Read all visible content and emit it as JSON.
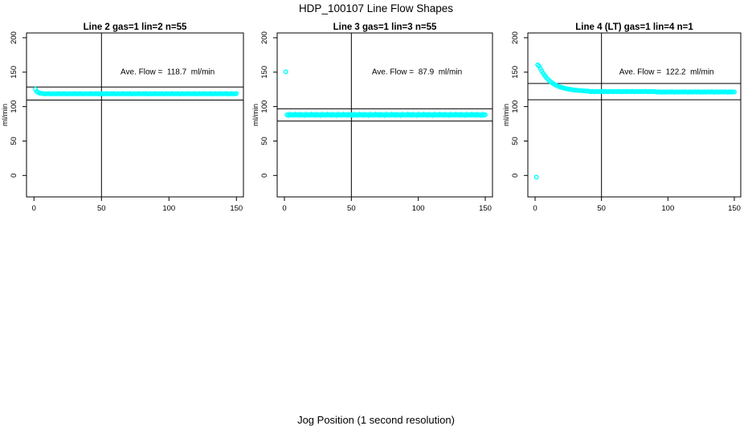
{
  "figure": {
    "main_title": "HDP_100107  Line Flow Shapes",
    "outer_xlabel": "Jog Position (1 second resolution)",
    "colors": {
      "marker": "#00FFFF",
      "axis": "#000000",
      "background": "#FFFFFF"
    }
  },
  "chart_data": [
    {
      "type": "scatter",
      "title": "Line 2 gas=1 lin=2 n=55",
      "ylabel": "ml/min",
      "annotation": "Ave. Flow =  118.7  ml/min",
      "ave_flow": 118.7,
      "xticks": [
        0,
        50,
        100,
        150
      ],
      "yticks": [
        0,
        50,
        100,
        150,
        200
      ],
      "xlim": [
        -5.4,
        155.4
      ],
      "ylim": [
        -31,
        207
      ],
      "grid": false,
      "vline_x": 50,
      "ref_lines": [
        128.5,
        109.5
      ],
      "x_rule": {
        "start": 1,
        "step": 1
      },
      "y": [
        125.2,
        121.9,
        120.6,
        119.8,
        119.4,
        119.1,
        118.7,
        118.5,
        118.8,
        118.6,
        118.9,
        118.4,
        118.6,
        118.8,
        118.5,
        118.7,
        118.6,
        118.9,
        118.7,
        118.5,
        118.8,
        118.6,
        118.9,
        118.4,
        118.6,
        118.8,
        118.5,
        118.7,
        118.6,
        118.9,
        118.7,
        118.5,
        118.8,
        118.6,
        118.9,
        118.4,
        118.6,
        118.8,
        118.5,
        118.7,
        118.6,
        118.9,
        118.7,
        118.5,
        118.8,
        118.6,
        118.9,
        118.4,
        118.6,
        118.8,
        118.5,
        118.7,
        118.6,
        118.9,
        118.7,
        118.5,
        118.8,
        118.6,
        118.9,
        118.4,
        118.6,
        118.8,
        118.5,
        118.7,
        118.6,
        118.9,
        118.7,
        118.5,
        118.8,
        118.6,
        118.9,
        118.4,
        118.6,
        118.8,
        118.5,
        118.7,
        118.6,
        118.9,
        118.7,
        118.5,
        118.8,
        118.6,
        118.9,
        118.4,
        118.6,
        118.8,
        118.5,
        118.7,
        118.6,
        118.9,
        118.7,
        118.5,
        118.8,
        118.6,
        118.9,
        118.4,
        118.6,
        118.8,
        118.5,
        118.7,
        118.6,
        118.9,
        118.7,
        118.5,
        118.8,
        118.6,
        118.9,
        118.4,
        118.6,
        118.8,
        118.5,
        118.7,
        118.6,
        118.9,
        118.7,
        118.5,
        118.8,
        118.6,
        118.9,
        118.4,
        118.6,
        118.8,
        118.5,
        118.7,
        118.6,
        118.9,
        118.7,
        118.5,
        118.8,
        118.6,
        118.9,
        118.4,
        118.6,
        118.8,
        118.5,
        118.7,
        118.6,
        118.9,
        118.7,
        118.5,
        118.8,
        118.6,
        118.9,
        118.4,
        118.6,
        118.8,
        118.5,
        118.7,
        118.6,
        118.9
      ]
    },
    {
      "type": "scatter",
      "title": "Line 3 gas=1 lin=3 n=55",
      "ylabel": "ml/min",
      "annotation": "Ave. Flow =  87.9  ml/min",
      "ave_flow": 87.9,
      "xticks": [
        0,
        50,
        100,
        150
      ],
      "yticks": [
        0,
        50,
        100,
        150,
        200
      ],
      "xlim": [
        -5.4,
        155.4
      ],
      "ylim": [
        -31,
        207
      ],
      "grid": false,
      "vline_x": 50,
      "ref_lines": [
        96.8,
        79.0
      ],
      "x_rule": {
        "start": 1,
        "step": 1
      },
      "y": [
        150.5,
        88.3,
        87.2,
        88.9,
        87.6,
        88.1,
        87.4,
        89.0,
        87.8,
        88.5,
        87.3,
        88.7,
        87.7,
        88.3,
        87.2,
        88.9,
        87.6,
        88.1,
        87.4,
        89.0,
        87.8,
        88.5,
        87.3,
        88.7,
        87.7,
        88.3,
        87.2,
        88.9,
        87.6,
        88.1,
        87.4,
        89.0,
        87.8,
        88.5,
        87.3,
        88.7,
        87.7,
        88.3,
        87.2,
        88.9,
        87.6,
        88.1,
        87.4,
        89.0,
        87.8,
        88.5,
        87.3,
        88.7,
        87.7,
        88.3,
        87.2,
        88.9,
        87.6,
        88.1,
        87.4,
        89.0,
        87.8,
        88.5,
        87.3,
        88.7,
        87.7,
        88.3,
        87.2,
        88.9,
        87.6,
        88.1,
        87.4,
        89.0,
        87.8,
        88.5,
        87.3,
        88.7,
        87.7,
        88.3,
        87.2,
        88.9,
        87.6,
        88.1,
        87.4,
        89.0,
        87.8,
        88.5,
        87.3,
        88.7,
        87.7,
        88.3,
        87.2,
        88.9,
        87.6,
        88.1,
        87.4,
        89.0,
        87.8,
        88.5,
        87.3,
        88.7,
        87.7,
        88.3,
        87.2,
        88.9,
        87.6,
        88.1,
        87.4,
        89.0,
        87.8,
        88.5,
        87.3,
        88.7,
        87.7,
        88.3,
        87.2,
        88.9,
        87.6,
        88.1,
        87.4,
        89.0,
        87.8,
        88.5,
        87.3,
        88.7,
        87.7,
        88.3,
        87.2,
        88.9,
        87.6,
        88.1,
        87.4,
        89.0,
        87.8,
        88.5,
        87.3,
        88.7,
        87.7,
        88.3,
        87.2,
        88.9,
        87.6,
        88.1,
        87.4,
        89.0,
        87.8,
        88.5,
        87.3,
        88.7,
        87.7,
        88.3,
        87.2,
        88.9,
        87.6,
        88.1
      ]
    },
    {
      "type": "scatter",
      "title": "Line 4 (LT) gas=1 lin=4 n=1",
      "ylabel": "ml/min",
      "annotation": "Ave. Flow =  122.2  ml/min",
      "ave_flow": 122.2,
      "xticks": [
        0,
        50,
        100,
        150
      ],
      "yticks": [
        0,
        50,
        100,
        150,
        200
      ],
      "xlim": [
        -5.4,
        155.4
      ],
      "ylim": [
        -31,
        207
      ],
      "grid": false,
      "vline_x": 50,
      "ref_lines": [
        133.5,
        110.0
      ],
      "x_rule": {
        "start": 1,
        "step": 1
      },
      "y": [
        -2.5,
        160.5,
        158.9,
        155.4,
        151.8,
        148.6,
        145.8,
        143.3,
        141.0,
        139.0,
        137.2,
        135.6,
        134.2,
        132.9,
        131.8,
        130.8,
        129.9,
        129.1,
        128.4,
        127.8,
        127.2,
        126.7,
        126.2,
        125.8,
        125.4,
        125.1,
        124.8,
        124.5,
        124.2,
        124.0,
        123.8,
        123.6,
        123.4,
        123.2,
        123.1,
        122.9,
        122.8,
        122.7,
        122.6,
        122.5,
        122.0,
        121.6,
        122.2,
        121.8,
        121.5,
        122.1,
        121.7,
        122.0,
        121.6,
        121.9,
        122.0,
        121.6,
        122.2,
        121.8,
        121.5,
        122.1,
        121.7,
        122.0,
        121.6,
        121.9,
        122.0,
        121.6,
        122.2,
        121.8,
        121.5,
        122.1,
        121.7,
        122.0,
        121.6,
        121.9,
        122.0,
        121.6,
        122.2,
        121.8,
        121.5,
        122.1,
        121.7,
        122.0,
        121.6,
        121.9,
        122.0,
        121.6,
        122.2,
        121.8,
        121.5,
        122.1,
        121.7,
        122.0,
        121.6,
        121.9,
        121.4,
        121.0,
        121.6,
        121.2,
        120.9,
        121.5,
        121.1,
        121.4,
        121.0,
        121.3,
        121.4,
        121.0,
        121.6,
        121.2,
        120.9,
        121.5,
        121.1,
        121.4,
        121.0,
        121.3,
        121.4,
        121.0,
        121.6,
        121.2,
        120.9,
        121.5,
        121.1,
        121.4,
        121.0,
        121.3,
        121.4,
        121.0,
        121.6,
        121.2,
        120.9,
        121.5,
        121.1,
        121.4,
        121.0,
        121.3,
        121.4,
        121.0,
        121.6,
        121.2,
        120.9,
        121.5,
        121.1,
        121.4,
        121.0,
        121.3,
        121.4,
        121.0,
        121.6,
        121.2,
        120.9,
        121.5,
        121.1,
        121.4,
        121.0,
        121.3
      ]
    }
  ]
}
